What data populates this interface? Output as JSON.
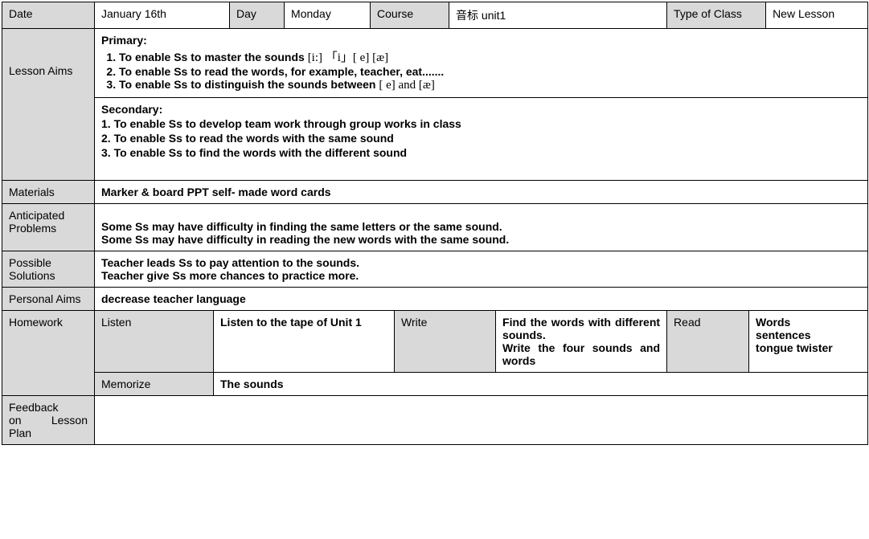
{
  "row1": {
    "date_lbl": "Date",
    "date_val": "January 16th",
    "day_lbl": "Day",
    "day_val": "Monday",
    "course_lbl": "Course",
    "course_val": "音标  unit1",
    "type_lbl": "Type of Class",
    "type_val": "New Lesson"
  },
  "aims": {
    "lbl": "Lesson Aims",
    "primary_title": "Primary:",
    "p1_a": "To enable Ss to master the sounds ",
    "p1_b": "[i:]   「i」[ e] [æ]",
    "p2": "To enable Ss to read the words, for example, teacher, eat.......",
    "p3_a": "To enable Ss to distinguish the sounds between ",
    "p3_b": "[ e] and   [æ]",
    "secondary_title": "Secondary:",
    "s1": "1. To enable Ss to develop team work through group works in class",
    "s2": "2. To enable Ss to read the words with the same sound",
    "s3": "3. To enable Ss to find the words with the different sound"
  },
  "materials": {
    "lbl": "Materials",
    "val": "Marker & board     PPT     self- made word cards"
  },
  "problems": {
    "lbl": "Anticipated Problems",
    "l1": "Some Ss may have difficulty in finding the same letters or the same sound.",
    "l2": "Some Ss may have difficulty in reading the new words with the same sound."
  },
  "solutions": {
    "lbl": "Possible Solutions",
    "l1": "Teacher leads Ss to pay attention to the sounds.",
    "l2": "Teacher give Ss more chances to practice more."
  },
  "personal": {
    "lbl": "Personal Aims",
    "val": "decrease teacher language"
  },
  "homework": {
    "lbl": "Homework",
    "listen_lbl": "Listen",
    "listen_val": "Listen to the tape of Unit 1",
    "write_lbl": "Write",
    "write_l1": "Find the words with different sounds.",
    "write_l2": "Write the four sounds and words",
    "read_lbl": "Read",
    "read_l1": "Words",
    "read_l2": "sentences",
    "read_l3": "tongue twister",
    "memorize_lbl": "Memorize",
    "memorize_val": "The sounds"
  },
  "feedback": {
    "lbl": "Feedback on Lesson Plan"
  }
}
